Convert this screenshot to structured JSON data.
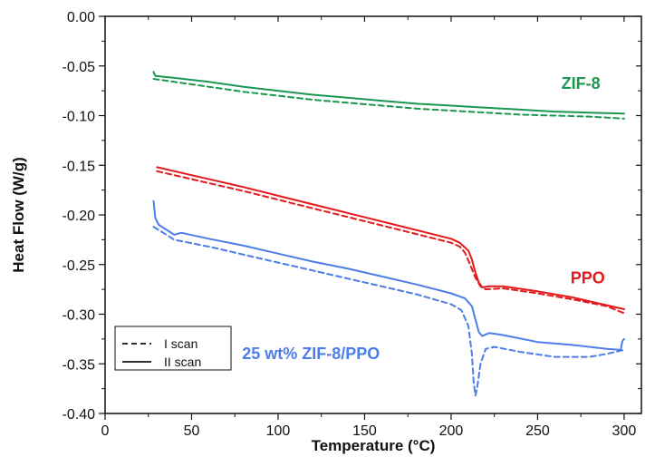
{
  "chart_data": {
    "type": "line",
    "xlabel": "Temperature (°C)",
    "ylabel": "Heat Flow (W/g)",
    "xlim": [
      0,
      310
    ],
    "ylim": [
      -0.4,
      0.0
    ],
    "xticks": [
      0,
      50,
      100,
      150,
      200,
      250,
      300
    ],
    "yticks": [
      0.0,
      -0.05,
      -0.1,
      -0.15,
      -0.2,
      -0.25,
      -0.3,
      -0.35,
      -0.4
    ],
    "ytick_labels": [
      "0.00",
      "-0.05",
      "-0.10",
      "-0.15",
      "-0.20",
      "-0.25",
      "-0.30",
      "-0.35",
      "-0.40"
    ],
    "legend": {
      "placement": "bottom-left",
      "entries": [
        {
          "label": "I scan",
          "style": "dashed"
        },
        {
          "label": "II scan",
          "style": "solid"
        }
      ]
    },
    "annotations": [
      {
        "text": "ZIF-8",
        "color": "#1a9850",
        "x": 275,
        "y": -0.073
      },
      {
        "text": "PPO",
        "color": "#e31a1c",
        "x": 279,
        "y": -0.269
      },
      {
        "text": "25 wt% ZIF-8/PPO",
        "color": "#4c7de8",
        "x": 119,
        "y": -0.345
      }
    ],
    "series": [
      {
        "material": "ZIF-8",
        "scan": "II scan",
        "style": "solid",
        "color": "#1a9850",
        "x": [
          28,
          29,
          40,
          60,
          80,
          100,
          120,
          140,
          160,
          180,
          200,
          220,
          240,
          260,
          280,
          300
        ],
        "y": [
          -0.056,
          -0.06,
          -0.062,
          -0.066,
          -0.071,
          -0.075,
          -0.079,
          -0.082,
          -0.085,
          -0.088,
          -0.09,
          -0.092,
          -0.094,
          -0.096,
          -0.097,
          -0.098
        ]
      },
      {
        "material": "ZIF-8",
        "scan": "I scan",
        "style": "dashed",
        "color": "#1a9850",
        "x": [
          28,
          40,
          60,
          80,
          100,
          120,
          140,
          160,
          180,
          200,
          220,
          240,
          260,
          280,
          300
        ],
        "y": [
          -0.063,
          -0.066,
          -0.071,
          -0.076,
          -0.08,
          -0.084,
          -0.087,
          -0.09,
          -0.093,
          -0.095,
          -0.097,
          -0.099,
          -0.1,
          -0.101,
          -0.103
        ]
      },
      {
        "material": "PPO",
        "scan": "II scan",
        "style": "solid",
        "color": "#e31a1c",
        "x": [
          30,
          50,
          80,
          110,
          140,
          170,
          200,
          205,
          210,
          212,
          214,
          216,
          218,
          222,
          230,
          250,
          270,
          290,
          300
        ],
        "y": [
          -0.152,
          -0.16,
          -0.172,
          -0.185,
          -0.198,
          -0.211,
          -0.224,
          -0.228,
          -0.236,
          -0.245,
          -0.258,
          -0.268,
          -0.273,
          -0.272,
          -0.272,
          -0.277,
          -0.283,
          -0.291,
          -0.295
        ]
      },
      {
        "material": "PPO",
        "scan": "I scan",
        "style": "dashed",
        "color": "#e31a1c",
        "x": [
          30,
          50,
          80,
          110,
          140,
          170,
          200,
          205,
          208,
          211,
          214,
          217,
          220,
          230,
          250,
          270,
          290,
          300
        ],
        "y": [
          -0.156,
          -0.164,
          -0.176,
          -0.189,
          -0.202,
          -0.215,
          -0.228,
          -0.232,
          -0.238,
          -0.25,
          -0.263,
          -0.272,
          -0.275,
          -0.274,
          -0.279,
          -0.285,
          -0.292,
          -0.299
        ]
      },
      {
        "material": "25 wt% ZIF-8/PPO",
        "scan": "II scan",
        "style": "solid",
        "color": "#4c7de8",
        "x": [
          28,
          29,
          31,
          40,
          44,
          60,
          80,
          100,
          120,
          140,
          160,
          180,
          200,
          208,
          212,
          214,
          216,
          218,
          222,
          230,
          250,
          270,
          290,
          298,
          299,
          300
        ],
        "y": [
          -0.186,
          -0.203,
          -0.21,
          -0.22,
          -0.218,
          -0.224,
          -0.231,
          -0.239,
          -0.247,
          -0.254,
          -0.262,
          -0.27,
          -0.279,
          -0.284,
          -0.292,
          -0.305,
          -0.318,
          -0.322,
          -0.319,
          -0.321,
          -0.328,
          -0.331,
          -0.335,
          -0.336,
          -0.327,
          -0.325
        ]
      },
      {
        "material": "25 wt% ZIF-8/PPO",
        "scan": "I scan",
        "style": "dashed",
        "color": "#4c7de8",
        "x": [
          28,
          40,
          60,
          80,
          100,
          120,
          140,
          160,
          180,
          200,
          206,
          210,
          212,
          213,
          214,
          215,
          217,
          220,
          225,
          240,
          260,
          280,
          290,
          300
        ],
        "y": [
          -0.212,
          -0.225,
          -0.232,
          -0.24,
          -0.248,
          -0.256,
          -0.264,
          -0.272,
          -0.28,
          -0.29,
          -0.296,
          -0.312,
          -0.34,
          -0.368,
          -0.382,
          -0.375,
          -0.35,
          -0.335,
          -0.333,
          -0.338,
          -0.343,
          -0.343,
          -0.34,
          -0.336
        ]
      }
    ]
  }
}
